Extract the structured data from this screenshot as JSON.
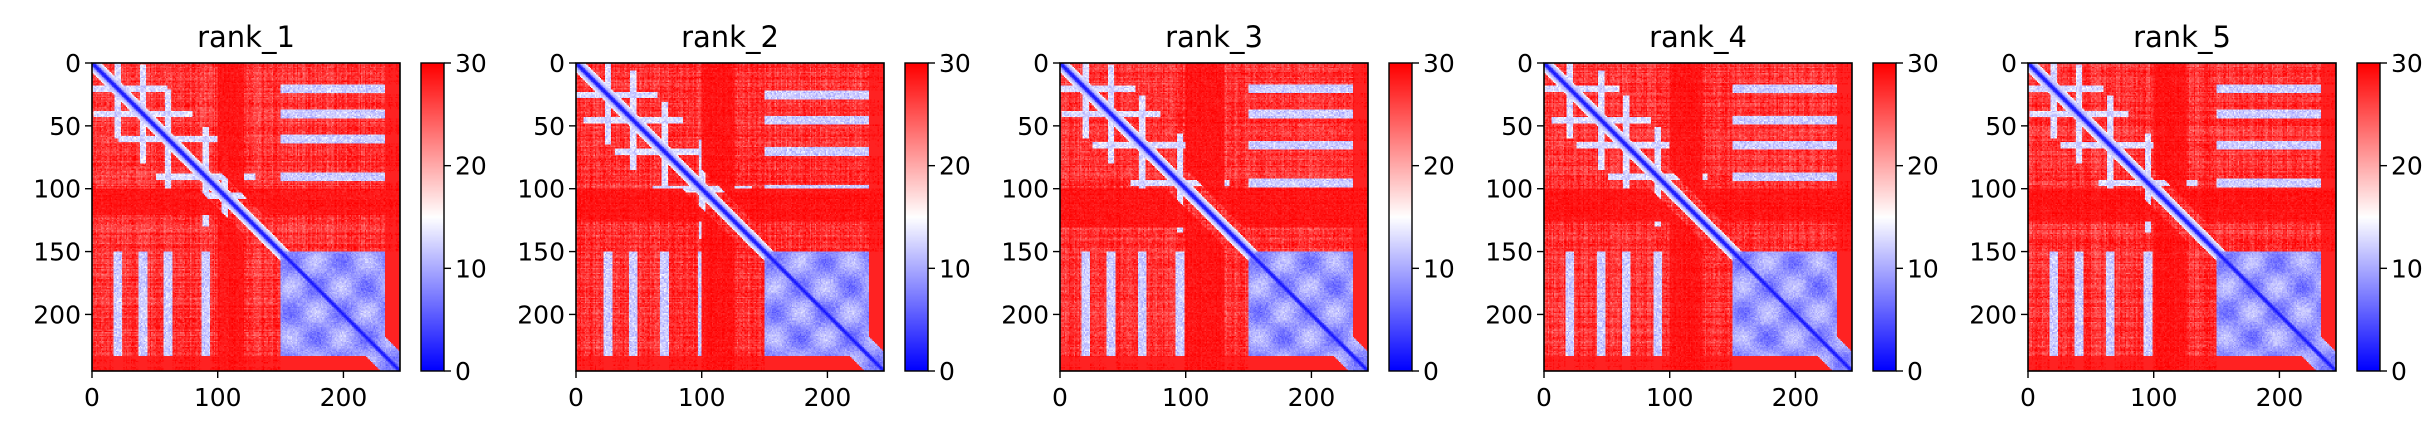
{
  "chart_data": [
    {
      "type": "heatmap",
      "title": "rank_1",
      "xlabel": "",
      "ylabel": "",
      "size": 245,
      "xlim": [
        0,
        245
      ],
      "ylim": [
        245,
        0
      ],
      "xticks": [
        0,
        100,
        200
      ],
      "yticks": [
        0,
        50,
        100,
        150,
        200
      ],
      "colormap": "bwr",
      "colorbar": {
        "min": 0,
        "max": 30,
        "ticks": [
          0,
          10,
          20,
          30
        ]
      },
      "blue_block": [
        150,
        245
      ],
      "blue_stripes": [
        20,
        40,
        60,
        90,
        105
      ],
      "red_bands": [
        100,
        120
      ]
    },
    {
      "type": "heatmap",
      "title": "rank_2",
      "xlabel": "",
      "ylabel": "",
      "size": 245,
      "xlim": [
        0,
        245
      ],
      "ylim": [
        245,
        0
      ],
      "xticks": [
        0,
        100,
        200
      ],
      "yticks": [
        0,
        50,
        100,
        150,
        200
      ],
      "colormap": "bwr",
      "colorbar": {
        "min": 0,
        "max": 30,
        "ticks": [
          0,
          10,
          20,
          30
        ]
      },
      "blue_block": [
        150,
        245
      ],
      "blue_stripes": [
        25,
        45,
        70,
        100
      ],
      "red_bands": [
        100,
        125
      ]
    },
    {
      "type": "heatmap",
      "title": "rank_3",
      "xlabel": "",
      "ylabel": "",
      "size": 245,
      "xlim": [
        0,
        245
      ],
      "ylim": [
        245,
        0
      ],
      "xticks": [
        0,
        100,
        200
      ],
      "yticks": [
        0,
        50,
        100,
        150,
        200
      ],
      "colormap": "bwr",
      "colorbar": {
        "min": 0,
        "max": 30,
        "ticks": [
          0,
          10,
          20,
          30
        ]
      },
      "blue_block": [
        150,
        245
      ],
      "blue_stripes": [
        20,
        40,
        65,
        95
      ],
      "red_bands": [
        100,
        130
      ]
    },
    {
      "type": "heatmap",
      "title": "rank_4",
      "xlabel": "",
      "ylabel": "",
      "size": 245,
      "xlim": [
        0,
        245
      ],
      "ylim": [
        245,
        0
      ],
      "xticks": [
        0,
        100,
        200
      ],
      "yticks": [
        0,
        50,
        100,
        150,
        200
      ],
      "colormap": "bwr",
      "colorbar": {
        "min": 0,
        "max": 30,
        "ticks": [
          0,
          10,
          20,
          30
        ]
      },
      "blue_block": [
        150,
        245
      ],
      "blue_stripes": [
        20,
        45,
        65,
        90
      ],
      "red_bands": [
        100,
        125
      ]
    },
    {
      "type": "heatmap",
      "title": "rank_5",
      "xlabel": "",
      "ylabel": "",
      "size": 245,
      "xlim": [
        0,
        245
      ],
      "ylim": [
        245,
        0
      ],
      "xticks": [
        0,
        100,
        200
      ],
      "yticks": [
        0,
        50,
        100,
        150,
        200
      ],
      "colormap": "bwr",
      "colorbar": {
        "min": 0,
        "max": 30,
        "ticks": [
          0,
          10,
          20,
          30
        ]
      },
      "blue_block": [
        150,
        245
      ],
      "blue_stripes": [
        20,
        40,
        65,
        95
      ],
      "red_bands": [
        100,
        125
      ]
    }
  ]
}
